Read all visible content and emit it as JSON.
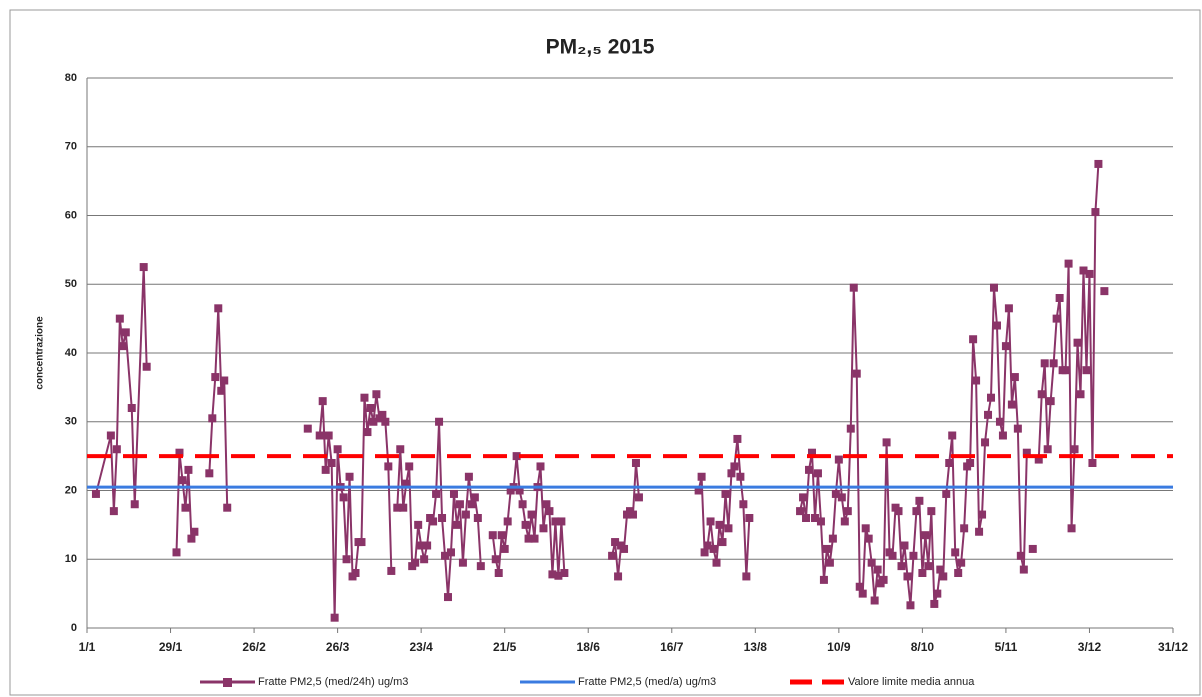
{
  "chart_data": {
    "type": "line",
    "title": "PM₂,₅ 2015",
    "y_label": "concentrazione",
    "xlim": [
      0,
      364
    ],
    "xticks": [
      {
        "value": 0,
        "label": "1/1"
      },
      {
        "value": 28,
        "label": "29/1"
      },
      {
        "value": 56,
        "label": "26/2"
      },
      {
        "value": 84,
        "label": "26/3"
      },
      {
        "value": 112,
        "label": "23/4"
      },
      {
        "value": 140,
        "label": "21/5"
      },
      {
        "value": 168,
        "label": "18/6"
      },
      {
        "value": 196,
        "label": "16/7"
      },
      {
        "value": 224,
        "label": "13/8"
      },
      {
        "value": 252,
        "label": "10/9"
      },
      {
        "value": 280,
        "label": "8/10"
      },
      {
        "value": 308,
        "label": "5/11"
      },
      {
        "value": 336,
        "label": "3/12"
      },
      {
        "value": 364,
        "label": "31/12"
      }
    ],
    "ylim": [
      0,
      80
    ],
    "yticks": [
      0,
      10,
      20,
      30,
      40,
      50,
      60,
      70,
      80
    ],
    "grid": true,
    "legend": "bottom",
    "series": [
      {
        "name": "Fratte PM2,5 (med/24h) ug/m3",
        "color": "#8a3468",
        "marker": "square",
        "x": [
          3,
          8,
          9,
          10,
          11,
          12,
          13,
          15,
          16,
          19,
          20,
          25,
          30,
          31,
          32,
          33,
          34,
          35,
          36,
          38,
          41,
          42,
          43,
          44,
          45,
          46,
          47,
          60,
          74,
          76,
          78,
          79,
          80,
          81,
          82,
          83,
          84,
          85,
          86,
          87,
          88,
          89,
          90,
          91,
          92,
          93,
          94,
          95,
          96,
          97,
          98,
          99,
          100,
          101,
          102,
          103,
          104,
          105,
          106,
          107,
          108,
          109,
          110,
          111,
          112,
          113,
          114,
          115,
          116,
          117,
          118,
          119,
          120,
          121,
          122,
          123,
          124,
          125,
          126,
          127,
          128,
          129,
          130,
          131,
          132,
          134,
          136,
          137,
          138,
          139,
          140,
          141,
          142,
          143,
          144,
          145,
          146,
          147,
          148,
          149,
          150,
          151,
          152,
          153,
          154,
          155,
          156,
          157,
          158,
          159,
          160,
          170,
          176,
          177,
          178,
          179,
          180,
          181,
          182,
          183,
          184,
          185,
          195,
          205,
          206,
          207,
          208,
          209,
          210,
          211,
          212,
          213,
          214,
          215,
          216,
          217,
          218,
          219,
          220,
          221,
          222,
          230,
          239,
          240,
          241,
          242,
          243,
          244,
          245,
          246,
          247,
          248,
          249,
          250,
          251,
          252,
          253,
          254,
          255,
          256,
          257,
          258,
          259,
          260,
          261,
          262,
          263,
          264,
          265,
          266,
          267,
          268,
          269,
          270,
          271,
          272,
          273,
          274,
          275,
          276,
          277,
          278,
          279,
          280,
          281,
          282,
          283,
          284,
          285,
          286,
          287,
          288,
          289,
          290,
          291,
          292,
          293,
          294,
          295,
          296,
          297,
          298,
          299,
          300,
          301,
          302,
          303,
          304,
          305,
          306,
          307,
          308,
          309,
          310,
          311,
          312,
          313,
          314,
          315,
          316,
          317,
          318,
          319,
          320,
          321,
          322,
          323,
          324,
          325,
          326,
          327,
          328,
          329,
          330,
          331,
          332,
          333,
          334,
          335,
          336,
          337,
          338,
          339,
          340,
          341
        ],
        "values": [
          19.5,
          28,
          17,
          26,
          45,
          41,
          43,
          32,
          18,
          52.5,
          38,
          null,
          11,
          25.5,
          21.5,
          17.5,
          23,
          13,
          14,
          null,
          22.5,
          30.5,
          36.5,
          46.5,
          34.5,
          36,
          17.5,
          null,
          29,
          null,
          28,
          33,
          23,
          28,
          24,
          1.5,
          26,
          20.5,
          19,
          10,
          22,
          7.5,
          8,
          12.5,
          12.5,
          33.5,
          28.5,
          32,
          30,
          34,
          30.5,
          31,
          30,
          23.5,
          8.3,
          null,
          17.5,
          26,
          17.5,
          21,
          23.5,
          9,
          9.5,
          15,
          12,
          10,
          12,
          16,
          15.5,
          19.5,
          30,
          16,
          10.5,
          4.5,
          11,
          19.5,
          15,
          18,
          9.5,
          16.5,
          22,
          18,
          19,
          16,
          9,
          null,
          13.5,
          10,
          8,
          13.5,
          11.5,
          15.5,
          20,
          20.5,
          25,
          20,
          18,
          15,
          13,
          16.5,
          13,
          20.5,
          23.5,
          14.5,
          18,
          17,
          7.8,
          15.5,
          7.6,
          15.5,
          8,
          null,
          10.5,
          12.5,
          7.5,
          12,
          11.5,
          16.5,
          17,
          16.5,
          24,
          19,
          null,
          20,
          22,
          11,
          12,
          15.5,
          11.5,
          9.5,
          15,
          12.5,
          19.5,
          14.5,
          22.5,
          23.5,
          27.5,
          22,
          18,
          7.5,
          16,
          null,
          17,
          19,
          16,
          23,
          25.5,
          16,
          22.5,
          15.5,
          7,
          11.5,
          9.5,
          13,
          19.5,
          24.5,
          19,
          15.5,
          17,
          29,
          49.5,
          37,
          6,
          5,
          14.5,
          13,
          9.5,
          4,
          8.5,
          6.5,
          7,
          27,
          11,
          10.5,
          17.5,
          17,
          9,
          12,
          7.5,
          3.3,
          10.5,
          17,
          18.5,
          8,
          13.5,
          9,
          17,
          3.5,
          5,
          8.5,
          7.5,
          19.5,
          24,
          28,
          11,
          8,
          9.5,
          14.5,
          23.5,
          24,
          42,
          36,
          14,
          16.5,
          27,
          31,
          33.5,
          49.5,
          44,
          30,
          28,
          41,
          46.5,
          32.5,
          36.5,
          29,
          10.5,
          8.5,
          25.5,
          null,
          11.5,
          null,
          24.5,
          34,
          38.5,
          26,
          33,
          38.5,
          45,
          48,
          37.5,
          37.5,
          53,
          14.5,
          26,
          41.5,
          34,
          52,
          37.5,
          51.5,
          24,
          60.5,
          67.5,
          null,
          49
        ]
      },
      {
        "name": "Fratte PM2,5 (med/a) ug/m3",
        "color": "#3a7be0",
        "x": [
          0,
          364
        ],
        "values": [
          20.5,
          20.5
        ]
      },
      {
        "name": "Valore limite media annua",
        "color": "#ff0000",
        "dash": true,
        "x": [
          0,
          364
        ],
        "values": [
          25,
          25
        ]
      }
    ]
  }
}
